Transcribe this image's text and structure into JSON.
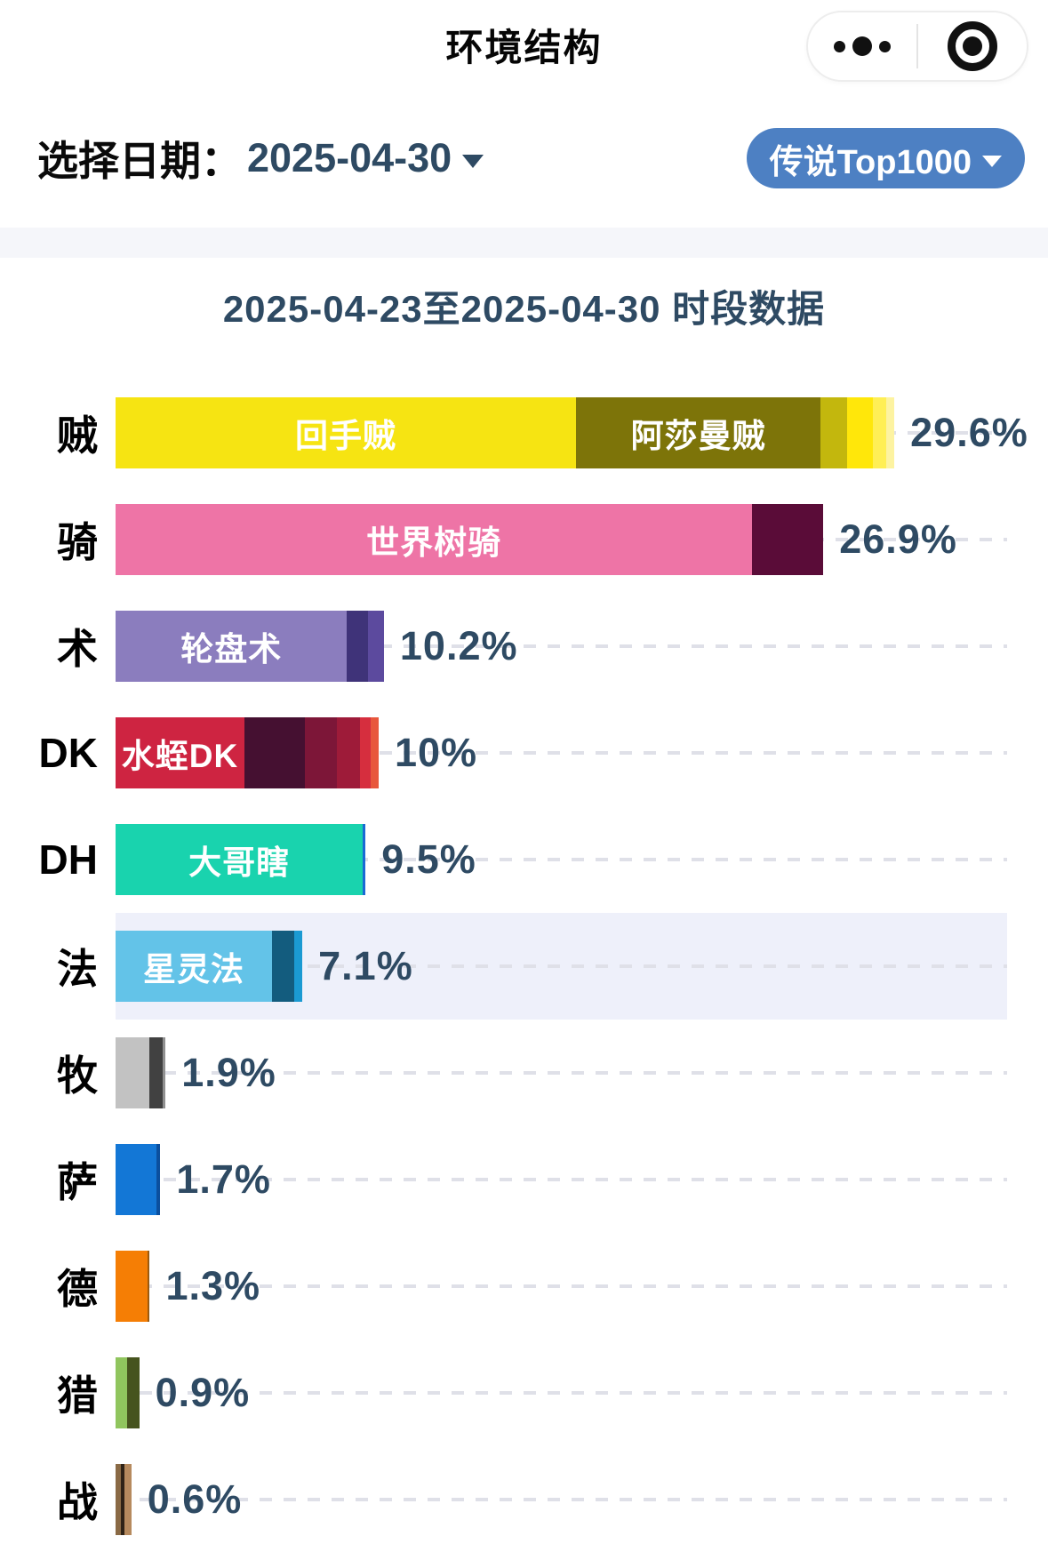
{
  "navbar": {
    "title": "环境结构",
    "more_icon": "more-dots-icon",
    "exit_icon": "target-circle-icon"
  },
  "filters": {
    "date_label": "选择日期：",
    "date_value": "2025-04-30",
    "rank_filter_label": "传说Top1000"
  },
  "colors": {
    "accent_blue": "#4d80c3",
    "text_slate": "#2e4a63",
    "separator": "#f5f6fa",
    "row_highlight": "#eef0fa",
    "gridline": "#dfe0e8"
  },
  "chart_data": {
    "type": "bar",
    "orientation": "horizontal-stacked",
    "title": "2025-04-23至2025-04-30 时段数据",
    "unit": "%",
    "axis_max_percent": 34,
    "grid": "dashed-row-lines",
    "rows": [
      {
        "label": "贼",
        "total_label": "29.6%",
        "total": 29.6,
        "highlight": false,
        "segments": [
          {
            "name": "回手贼",
            "value": 17.5,
            "color": "#f6e412"
          },
          {
            "name": "阿莎曼贼",
            "value": 9.3,
            "color": "#7d7409"
          },
          {
            "name": "",
            "value": 1.0,
            "color": "#c3b70d"
          },
          {
            "name": "",
            "value": 1.0,
            "color": "#ffe70a"
          },
          {
            "name": "",
            "value": 0.5,
            "color": "#ffef55"
          },
          {
            "name": "",
            "value": 0.3,
            "color": "#fdf3a1"
          }
        ]
      },
      {
        "label": "骑",
        "total_label": "26.9%",
        "total": 26.9,
        "highlight": false,
        "segments": [
          {
            "name": "世界树骑",
            "value": 24.2,
            "color": "#ee74a6"
          },
          {
            "name": "",
            "value": 2.7,
            "color": "#5a0c38"
          }
        ]
      },
      {
        "label": "术",
        "total_label": "10.2%",
        "total": 10.2,
        "highlight": false,
        "segments": [
          {
            "name": "轮盘术",
            "value": 8.8,
            "color": "#8b7dbe"
          },
          {
            "name": "",
            "value": 0.8,
            "color": "#3f3379"
          },
          {
            "name": "",
            "value": 0.6,
            "color": "#5c4a9e"
          }
        ]
      },
      {
        "label": "DK",
        "total_label": "10%",
        "total": 10.0,
        "highlight": false,
        "segments": [
          {
            "name": "水蛭DK",
            "value": 4.9,
            "color": "#ce2441"
          },
          {
            "name": "",
            "value": 2.3,
            "color": "#451031"
          },
          {
            "name": "",
            "value": 1.2,
            "color": "#7d1638"
          },
          {
            "name": "",
            "value": 0.9,
            "color": "#9e1b39"
          },
          {
            "name": "",
            "value": 0.4,
            "color": "#d62e3e"
          },
          {
            "name": "",
            "value": 0.3,
            "color": "#e8573c"
          }
        ]
      },
      {
        "label": "DH",
        "total_label": "9.5%",
        "total": 9.5,
        "highlight": false,
        "segments": [
          {
            "name": "大哥瞎",
            "value": 9.4,
            "color": "#19d3ae"
          },
          {
            "name": "",
            "value": 0.1,
            "color": "#1a6ad4"
          }
        ]
      },
      {
        "label": "法",
        "total_label": "7.1%",
        "total": 7.1,
        "highlight": true,
        "segments": [
          {
            "name": "星灵法",
            "value": 5.95,
            "color": "#63c3e8"
          },
          {
            "name": "",
            "value": 0.85,
            "color": "#135c7e"
          },
          {
            "name": "",
            "value": 0.3,
            "color": "#1b9ad2"
          }
        ]
      },
      {
        "label": "牧",
        "total_label": "1.9%",
        "total": 1.9,
        "highlight": false,
        "segments": [
          {
            "name": "",
            "value": 1.3,
            "color": "#c2c2c2"
          },
          {
            "name": "",
            "value": 0.5,
            "color": "#414141"
          },
          {
            "name": "",
            "value": 0.1,
            "color": "#909090"
          }
        ]
      },
      {
        "label": "萨",
        "total_label": "1.7%",
        "total": 1.7,
        "highlight": false,
        "segments": [
          {
            "name": "",
            "value": 1.55,
            "color": "#1377d6"
          },
          {
            "name": "",
            "value": 0.15,
            "color": "#0b4f9e"
          }
        ]
      },
      {
        "label": "德",
        "total_label": "1.3%",
        "total": 1.3,
        "highlight": false,
        "segments": [
          {
            "name": "",
            "value": 1.2,
            "color": "#f57e05"
          },
          {
            "name": "",
            "value": 0.1,
            "color": "#9a5a10"
          }
        ]
      },
      {
        "label": "猎",
        "total_label": "0.9%",
        "total": 0.9,
        "highlight": false,
        "segments": [
          {
            "name": "",
            "value": 0.45,
            "color": "#90c55e"
          },
          {
            "name": "",
            "value": 0.45,
            "color": "#46541e"
          }
        ]
      },
      {
        "label": "战",
        "total_label": "0.6%",
        "total": 0.6,
        "highlight": false,
        "segments": [
          {
            "name": "",
            "value": 0.2,
            "color": "#8a6a45"
          },
          {
            "name": "",
            "value": 0.15,
            "color": "#2f2317"
          },
          {
            "name": "",
            "value": 0.25,
            "color": "#b68a5e"
          }
        ]
      }
    ]
  }
}
